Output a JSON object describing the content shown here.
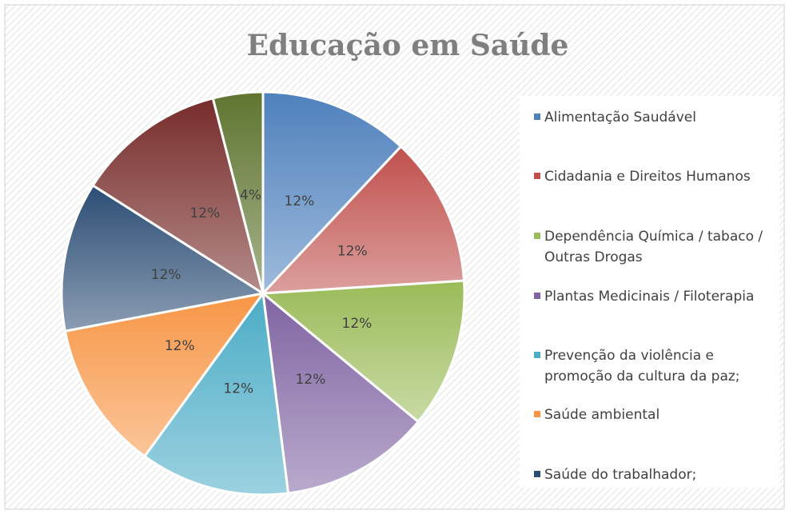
{
  "chart_data": {
    "type": "pie",
    "title": "Educação em Saúde",
    "categories": [
      "Alimentação Saudável",
      "Cidadania e Direitos Humanos",
      "Dependência Química / tabaco / Outras Drogas",
      "Plantas Medicinais / Filoterapia",
      "Prevenção da violência e promoção da cultura da paz;",
      "Saúde ambiental",
      "Saúde do trabalhador;",
      null,
      null
    ],
    "values": [
      12,
      12,
      12,
      12,
      12,
      12,
      12,
      12,
      4
    ],
    "value_labels": [
      "12%",
      "12%",
      "12%",
      "12%",
      "12%",
      "12%",
      "12%",
      "12%",
      "4%"
    ],
    "colors": [
      "#4f81bd",
      "#c0504d",
      "#9bbb59",
      "#8064a2",
      "#4bacc6",
      "#f79646",
      "#2c4d75",
      "#772c2a",
      "#5f7530"
    ],
    "legend": "right"
  }
}
